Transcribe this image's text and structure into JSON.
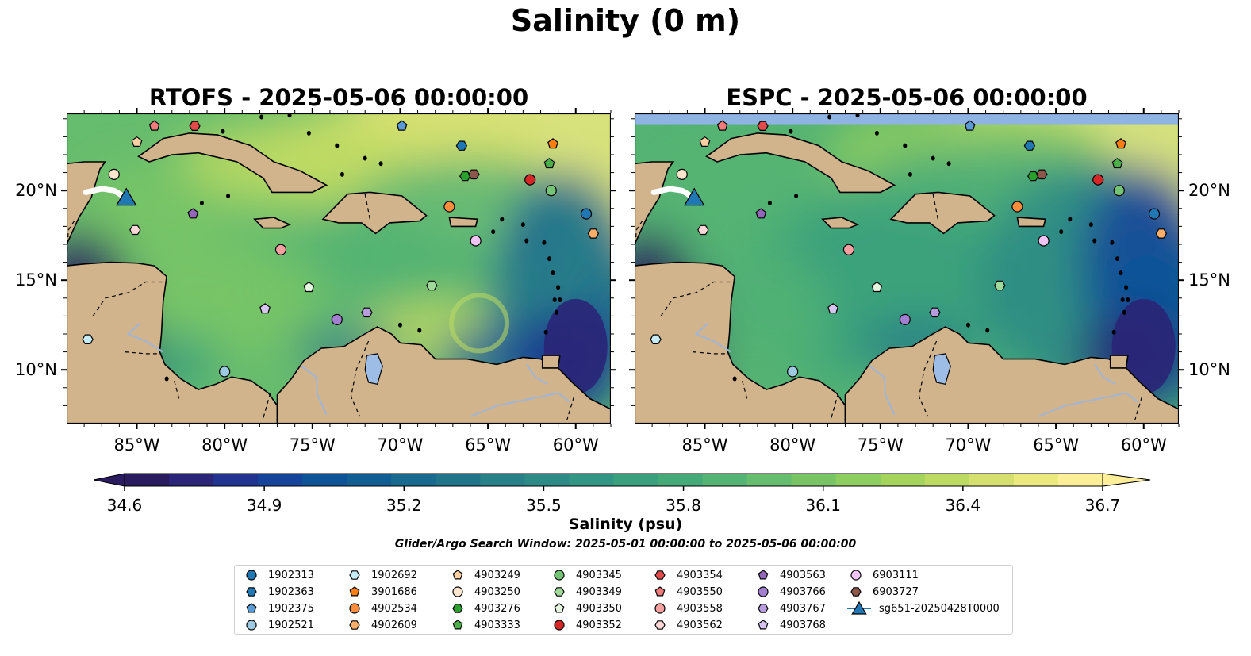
{
  "suptitle": "Salinity (0 m)",
  "panels": [
    {
      "title": "RTOFS - 2025-05-06 00:00:00"
    },
    {
      "title": "ESPC - 2025-05-06 00:00:00"
    }
  ],
  "colorbar": {
    "label": "Salinity (psu)",
    "ticks": [
      "34.6",
      "34.9",
      "35.2",
      "35.5",
      "35.8",
      "36.1",
      "36.4",
      "36.7"
    ],
    "min": 34.6,
    "max": 36.7,
    "colormap": "haline",
    "colors": [
      "#2a1b5e",
      "#2a2577",
      "#213490",
      "#17449b",
      "#0f5397",
      "#125e92",
      "#1a698e",
      "#22748b",
      "#288088",
      "#2d8a86",
      "#339583",
      "#3aa07d",
      "#45aa78",
      "#55b473",
      "#67bd6e",
      "#79c566",
      "#8ecd5f",
      "#a5d45d",
      "#bdda62",
      "#d5df6d",
      "#ece97f",
      "#fdee99"
    ]
  },
  "search_window": "Glider/Argo Search Window: 2025-05-01 00:00:00 to 2025-05-06 00:00:00",
  "chart_data": {
    "type": "map",
    "region": "Caribbean Sea",
    "variable": "sea surface salinity at 0 m",
    "units": "psu",
    "lon_range": [
      -89,
      -58
    ],
    "lat_range": [
      7,
      24.3
    ],
    "x_ticks": [
      "85°W",
      "80°W",
      "75°W",
      "70°W",
      "65°W",
      "60°W"
    ],
    "y_ticks": [
      "20°N",
      "15°N",
      "10°N"
    ],
    "models": [
      "RTOFS",
      "ESPC"
    ],
    "floats": [
      {
        "id": "1902313",
        "marker": "circle",
        "color": "#1f77b4",
        "lon": -59.4,
        "lat": 18.7
      },
      {
        "id": "1902363",
        "marker": "hexagon",
        "color": "#1f77b4",
        "lon": -66.5,
        "lat": 22.5
      },
      {
        "id": "1902375",
        "marker": "pentagon",
        "color": "#5b9bd5",
        "lon": -69.9,
        "lat": 23.6
      },
      {
        "id": "1902521",
        "marker": "circle",
        "color": "#9ecae1",
        "lon": -80.0,
        "lat": 9.9
      },
      {
        "id": "1902692",
        "marker": "hexagon",
        "color": "#c6ecf7",
        "lon": -87.8,
        "lat": 11.7
      },
      {
        "id": "3901686",
        "marker": "pentagon",
        "color": "#ff7f0e",
        "lon": -61.3,
        "lat": 22.6
      },
      {
        "id": "4902534",
        "marker": "circle",
        "color": "#fd8d3c",
        "lon": -67.2,
        "lat": 19.1
      },
      {
        "id": "4902609",
        "marker": "hexagon",
        "color": "#fdae6b",
        "lon": -59.0,
        "lat": 17.6
      },
      {
        "id": "4903249",
        "marker": "pentagon",
        "color": "#fdd0a2",
        "lon": -85.0,
        "lat": 22.7
      },
      {
        "id": "4903250",
        "marker": "circle",
        "color": "#fee6ce",
        "lon": -86.3,
        "lat": 20.9
      },
      {
        "id": "4903276",
        "marker": "hexagon",
        "color": "#2ca02c",
        "lon": -66.3,
        "lat": 20.8
      },
      {
        "id": "4903333",
        "marker": "pentagon",
        "color": "#4daf4a",
        "lon": -61.5,
        "lat": 21.5
      },
      {
        "id": "4903345",
        "marker": "circle",
        "color": "#74c476",
        "lon": -61.4,
        "lat": 20.0
      },
      {
        "id": "4903349",
        "marker": "hexagon",
        "color": "#a1d99b",
        "lon": -68.2,
        "lat": 14.7
      },
      {
        "id": "4903350",
        "marker": "pentagon",
        "color": "#e5f5e0",
        "lon": -75.2,
        "lat": 14.6
      },
      {
        "id": "4903352",
        "marker": "circle",
        "color": "#d62728",
        "lon": -62.6,
        "lat": 20.6
      },
      {
        "id": "4903354",
        "marker": "hexagon",
        "color": "#e34a4a",
        "lon": -81.7,
        "lat": 23.6
      },
      {
        "id": "4903550",
        "marker": "pentagon",
        "color": "#f07b7b",
        "lon": -84.0,
        "lat": 23.6
      },
      {
        "id": "4903558",
        "marker": "circle",
        "color": "#f4a0a0",
        "lon": -76.8,
        "lat": 16.7
      },
      {
        "id": "4903562",
        "marker": "hexagon",
        "color": "#fdd7d7",
        "lon": -85.1,
        "lat": 17.8
      },
      {
        "id": "4903563",
        "marker": "pentagon",
        "color": "#9467bd",
        "lon": -81.8,
        "lat": 18.7
      },
      {
        "id": "4903766",
        "marker": "circle",
        "color": "#a27fd0",
        "lon": -73.6,
        "lat": 12.8
      },
      {
        "id": "4903767",
        "marker": "hexagon",
        "color": "#b89ce0",
        "lon": -71.9,
        "lat": 13.2
      },
      {
        "id": "4903768",
        "marker": "pentagon",
        "color": "#d8c4f0",
        "lon": -77.7,
        "lat": 13.4
      },
      {
        "id": "6903111",
        "marker": "circle",
        "color": "#f0c3f5",
        "lon": -65.7,
        "lat": 17.2
      },
      {
        "id": "6903727",
        "marker": "hexagon",
        "color": "#8c564b",
        "lon": -65.8,
        "lat": 20.9
      }
    ],
    "glider": {
      "id": "sg651-20250428T0000",
      "marker": "triangle",
      "color": "#1f77b4",
      "lon": -85.6,
      "lat": 19.4,
      "track": [
        [
          -87.9,
          19.9
        ],
        [
          -87.0,
          20.1
        ],
        [
          -86.3,
          20.0
        ],
        [
          -85.8,
          19.7
        ]
      ]
    }
  }
}
